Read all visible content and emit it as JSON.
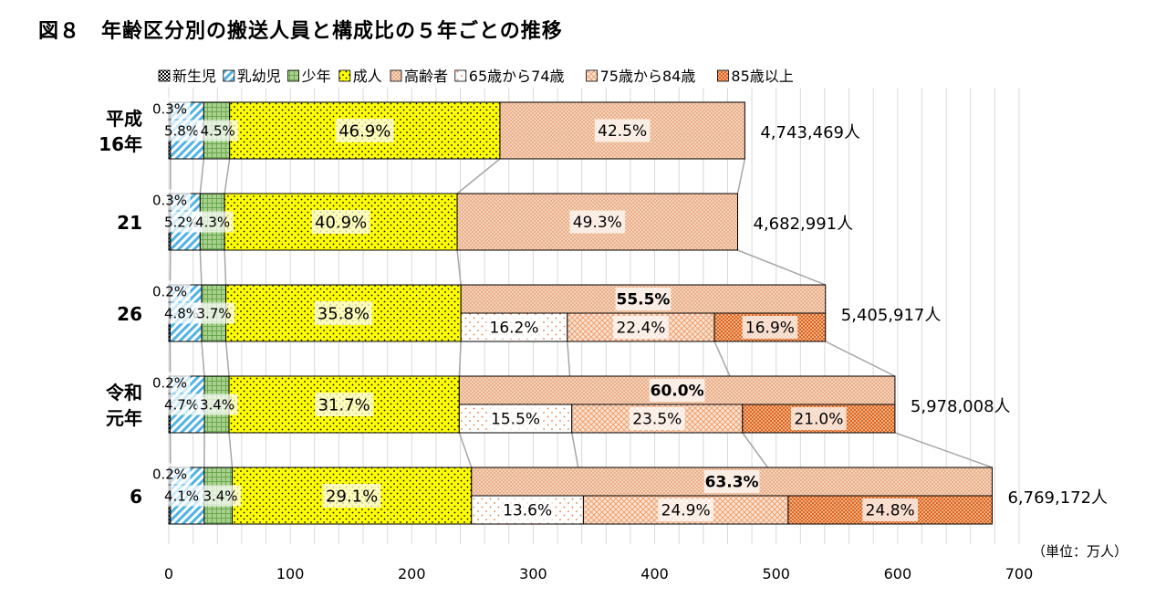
{
  "title": "図８　年齢区分別の搬送人員と構成比の５年ごとの推移",
  "chart_data": {
    "type": "bar",
    "orientation": "horizontal",
    "stacked": true,
    "title": "図８　年齢区分別の搬送人員と構成比の５年ごとの推移",
    "unit_label": "（単位：万人）",
    "xlim": [
      0,
      700
    ],
    "x_ticks": [
      "0",
      "100",
      "200",
      "300",
      "400",
      "500",
      "600",
      "700"
    ],
    "grid": true,
    "legend_position": "top",
    "legend": [
      {
        "name": "新生児",
        "color": "#000000"
      },
      {
        "name": "乳幼児",
        "color": "#5bb8e6"
      },
      {
        "name": "少年",
        "color": "#7ab648"
      },
      {
        "name": "成人",
        "color": "#ffff00"
      },
      {
        "name": "高齢者",
        "color": "#f2c4a6"
      },
      {
        "name": "65歳から74歳",
        "color": "#ffffff"
      },
      {
        "name": "75歳から84歳",
        "color": "#f4b183"
      },
      {
        "name": "85歳以上",
        "color": "#e2702a"
      }
    ],
    "categories": [
      {
        "label_lines": [
          "平成",
          "16年"
        ],
        "total_label": "4,743,469人",
        "total": 474.3469,
        "segments": {
          "新生児": 1.4,
          "乳幼児": 27.4,
          "少年": 21.3,
          "成人": 222.5,
          "高齢者": 201.6
        },
        "labels": {
          "新生児": "0.3%",
          "乳幼児": "5.8%",
          "少年": "4.5%",
          "成人": "46.9%",
          "高齢者": "42.5%"
        }
      },
      {
        "label_lines": [
          "21"
        ],
        "total_label": "4,682,991人",
        "total": 468.2991,
        "segments": {
          "新生児": 1.4,
          "乳幼児": 24.4,
          "少年": 20.1,
          "成人": 191.5,
          "高齢者": 230.9
        },
        "labels": {
          "新生児": "0.3%",
          "乳幼児": "5.2%",
          "少年": "4.3%",
          "成人": "40.9%",
          "高齢者": "49.3%"
        }
      },
      {
        "label_lines": [
          "26"
        ],
        "total_label": "5,405,917人",
        "total": 540.5917,
        "segments": {
          "新生児": 1.1,
          "乳幼児": 25.9,
          "少年": 20.0,
          "成人": 193.5,
          "65歳から74歳": 87.6,
          "75歳から84歳": 121.1,
          "85歳以上": 91.4
        },
        "labels": {
          "新生児": "0.2%",
          "乳幼児": "4.8%",
          "少年": "3.7%",
          "成人": "35.8%",
          "高齢者": "55.5%",
          "65歳から74歳": "16.2%",
          "75歳から84歳": "22.4%",
          "85歳以上": "16.9%"
        }
      },
      {
        "label_lines": [
          "令和",
          "元年"
        ],
        "total_label": "5,978,008人",
        "total": 597.8008,
        "segments": {
          "新生児": 1.2,
          "乳幼児": 28.1,
          "少年": 20.3,
          "成人": 189.5,
          "65歳から74歳": 92.7,
          "75歳から84歳": 140.5,
          "85歳以上": 125.5
        },
        "labels": {
          "新生児": "0.2%",
          "乳幼児": "4.7%",
          "少年": "3.4%",
          "成人": "31.7%",
          "高齢者": "60.0%",
          "65歳から74歳": "15.5%",
          "75歳から84歳": "23.5%",
          "85歳以上": "21.0%"
        }
      },
      {
        "label_lines": [
          "6"
        ],
        "total_label": "6,769,172人",
        "total": 676.9172,
        "segments": {
          "新生児": 1.4,
          "乳幼児": 27.8,
          "少年": 23.0,
          "成人": 197.0,
          "65歳から74歳": 92.1,
          "75歳から84歳": 168.6,
          "85歳以上": 167.9
        },
        "labels": {
          "新生児": "0.2%",
          "乳幼児": "4.1%",
          "少年": "3.4%",
          "成人": "29.1%",
          "高齢者": "63.3%",
          "65歳から74歳": "13.6%",
          "75歳から84歳": "24.9%",
          "85歳以上": "24.8%"
        }
      }
    ]
  }
}
